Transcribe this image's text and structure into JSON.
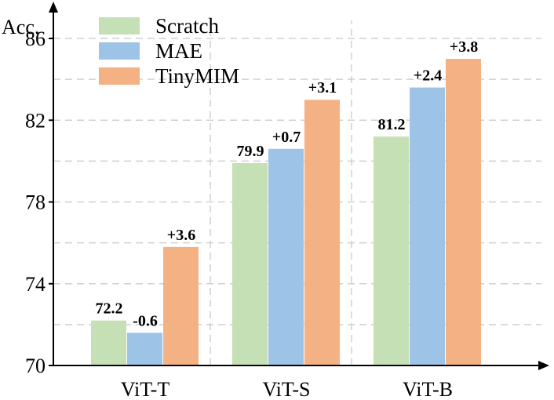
{
  "chart_data": {
    "type": "bar",
    "title": "",
    "xlabel": "",
    "ylabel": "Acc.",
    "ylim": [
      70,
      86.5
    ],
    "yticks": [
      70,
      74,
      78,
      82,
      86
    ],
    "grid": true,
    "legend_position": "top-left",
    "categories": [
      "ViT-T",
      "ViT-S",
      "ViT-B"
    ],
    "series": [
      {
        "name": "Scratch",
        "color": "#c5e0b4",
        "values": [
          72.2,
          79.9,
          81.2
        ],
        "labels": [
          "72.2",
          "79.9",
          "81.2"
        ]
      },
      {
        "name": "MAE",
        "color": "#9dc3e6",
        "values": [
          71.6,
          80.6,
          83.6
        ],
        "labels": [
          "-0.6",
          "+0.7",
          "+2.4"
        ]
      },
      {
        "name": "TinyMIM",
        "color": "#f4b183",
        "values": [
          75.8,
          83.0,
          85.0
        ],
        "labels": [
          "+3.6",
          "+3.1",
          "+3.8"
        ]
      }
    ]
  }
}
